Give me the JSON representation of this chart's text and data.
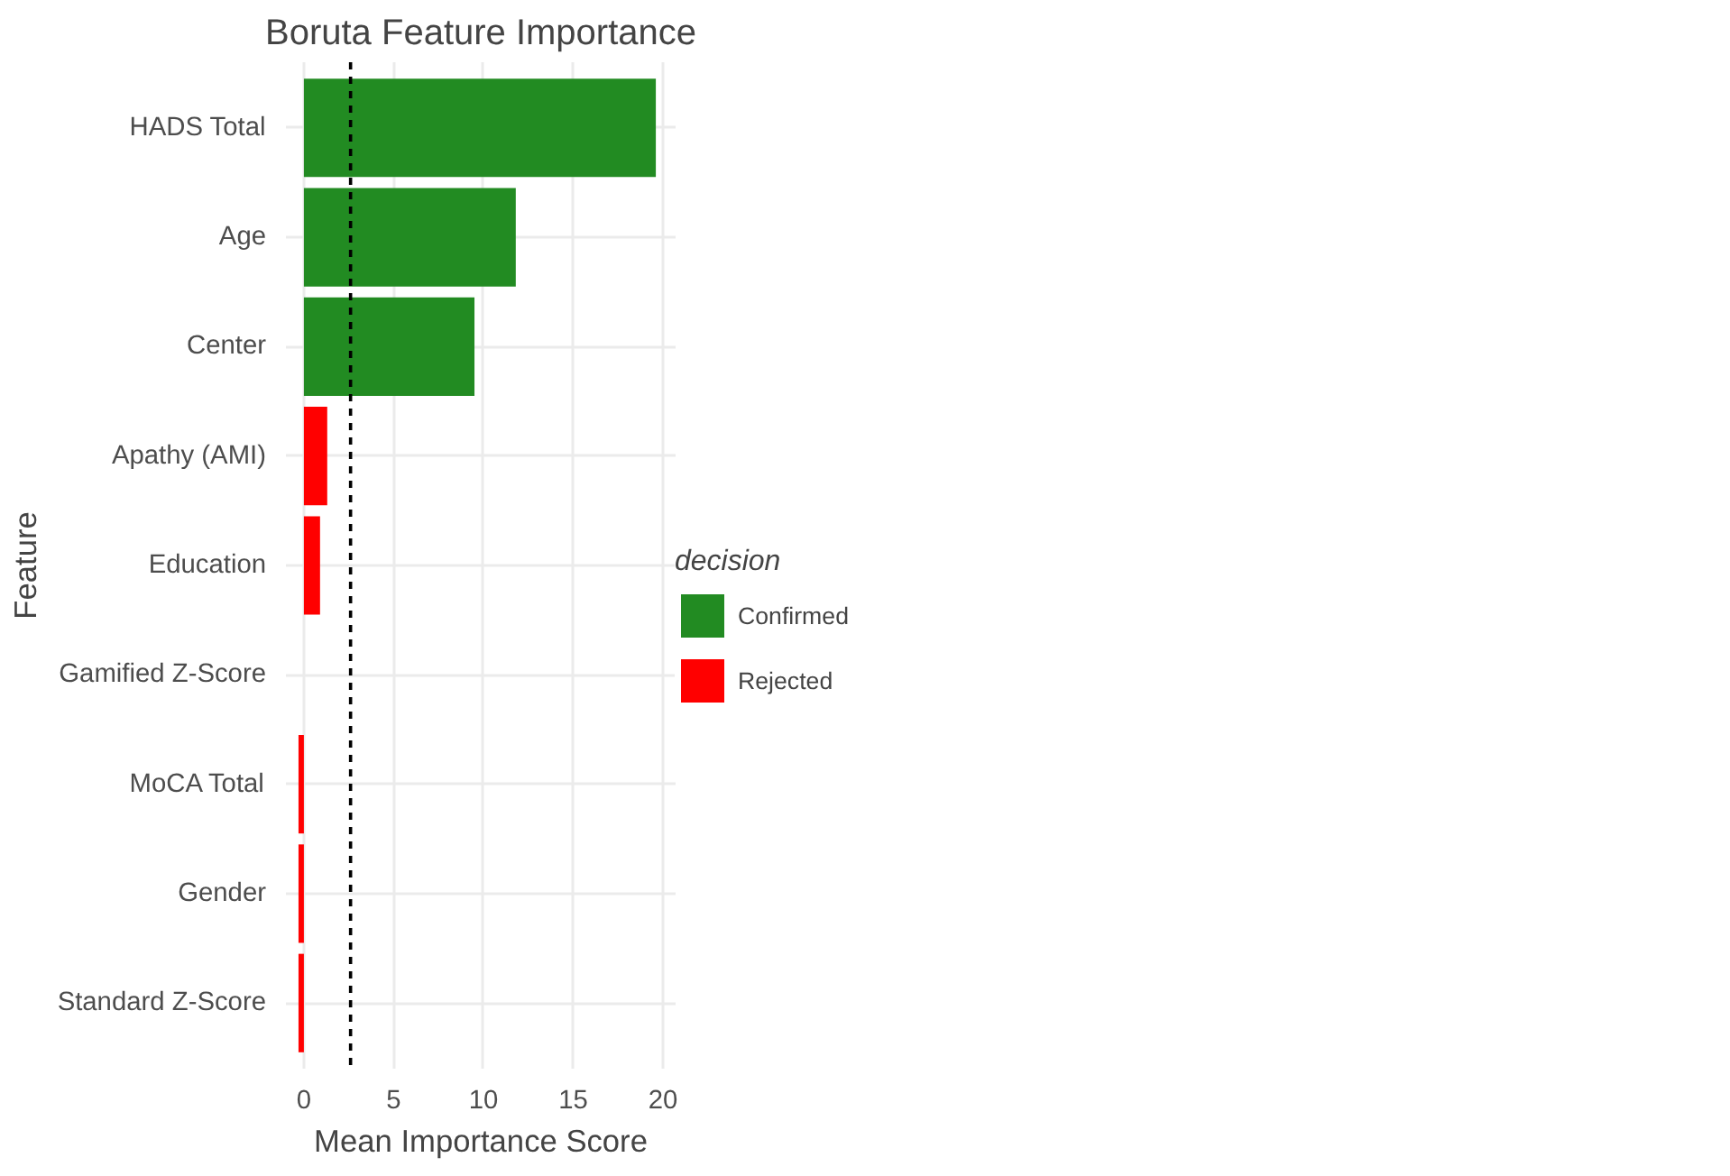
{
  "chart_data": {
    "type": "bar",
    "orientation": "horizontal",
    "title": "Boruta Feature Importance",
    "xlabel": "Mean Importance Score",
    "ylabel": "Feature",
    "legend_title": "decision",
    "categories": [
      "HADS Total",
      "Age",
      "Center",
      "Apathy (AMI)",
      "Education",
      "Gamified Z-Score",
      "MoCA Total",
      "Gender",
      "Standard Z-Score"
    ],
    "series": [
      {
        "name": "Confirmed",
        "color": "#228b22",
        "values": [
          19.6,
          11.8,
          9.5,
          null,
          null,
          null,
          null,
          null,
          null
        ]
      },
      {
        "name": "Rejected",
        "color": "#ff0000",
        "values": [
          null,
          null,
          null,
          1.3,
          0.9,
          0,
          -0.3,
          -0.3,
          -0.3
        ]
      }
    ],
    "xlim": [
      -1,
      20.7
    ],
    "xticks": [
      0,
      5,
      10,
      15,
      20
    ],
    "ref_lines": [
      {
        "axis": "x",
        "value": 2.6,
        "line_style": "dashed",
        "color": "#000000"
      }
    ],
    "grid": true,
    "legend": "right"
  }
}
